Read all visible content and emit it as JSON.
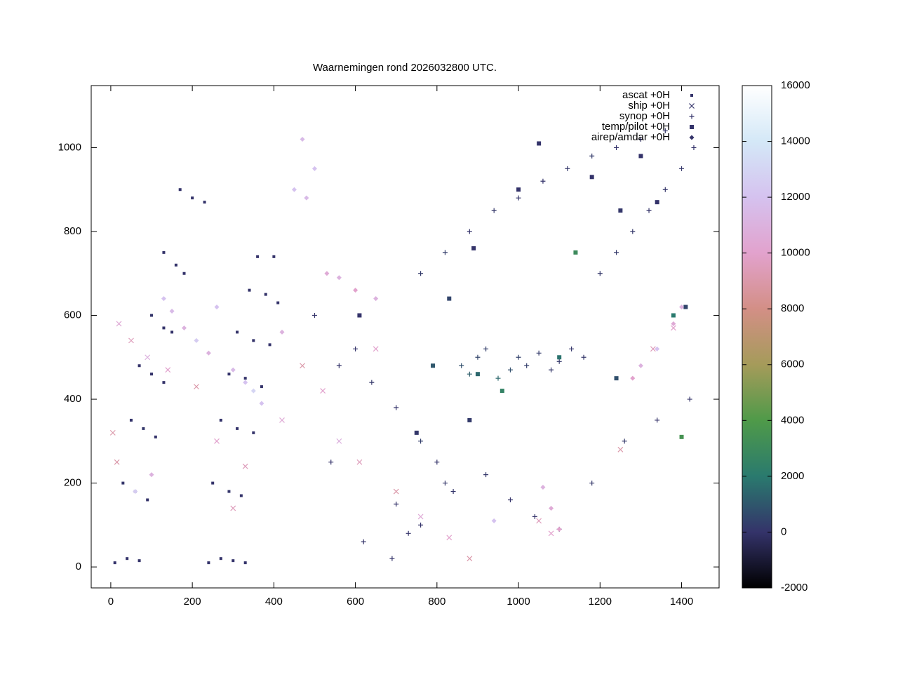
{
  "chart_data": {
    "type": "scatter",
    "title": "Waarnemingen rond 2026032800 UTC.",
    "xlim": [
      -48,
      1492
    ],
    "ylim": [
      -50,
      1148
    ],
    "xticks": [
      0,
      200,
      400,
      600,
      800,
      1000,
      1200,
      1400
    ],
    "yticks": [
      0,
      200,
      400,
      600,
      800,
      1000
    ],
    "colorbar": {
      "range": [
        -2000,
        16000
      ],
      "ticks": [
        -2000,
        0,
        2000,
        4000,
        6000,
        8000,
        10000,
        12000,
        14000,
        16000
      ],
      "colors": [
        "#000000",
        "#34336a",
        "#2a7a6e",
        "#4f9a49",
        "#a59b5a",
        "#d38f86",
        "#e2a2cd",
        "#d5c2ef",
        "#d4e8f7",
        "#ffffff"
      ]
    },
    "series": [
      {
        "name": "ascat +0H",
        "marker": "dot",
        "x": [
          10,
          40,
          70,
          30,
          60,
          90,
          50,
          80,
          110,
          70,
          100,
          130,
          100,
          130,
          150,
          130,
          160,
          180,
          170,
          200,
          230,
          240,
          270,
          300,
          330,
          250,
          290,
          320,
          270,
          310,
          350,
          290,
          330,
          370,
          310,
          350,
          390,
          340,
          380,
          410,
          360,
          400
        ],
        "y": [
          10,
          20,
          15,
          200,
          180,
          160,
          350,
          330,
          310,
          480,
          460,
          440,
          600,
          570,
          560,
          750,
          720,
          700,
          900,
          880,
          870,
          10,
          20,
          15,
          10,
          200,
          180,
          170,
          350,
          330,
          320,
          460,
          450,
          430,
          560,
          540,
          530,
          660,
          650,
          630,
          740,
          740
        ],
        "z": [
          0,
          0,
          0,
          50,
          0,
          0,
          0,
          100,
          0,
          0,
          0,
          0,
          50,
          0,
          0,
          0,
          0,
          0,
          0,
          0,
          0,
          0,
          0,
          0,
          0,
          0,
          50,
          0,
          0,
          0,
          0,
          0,
          0,
          0,
          0,
          0,
          0,
          0,
          0,
          0,
          0,
          0
        ]
      },
      {
        "name": "ship +0H",
        "marker": "cross",
        "x": [
          5,
          20,
          50,
          90,
          140,
          210,
          260,
          330,
          420,
          470,
          520,
          560,
          610,
          650,
          700,
          760,
          830,
          880,
          1050,
          1080,
          1250,
          1330,
          1380,
          15,
          300
        ],
        "y": [
          320,
          580,
          540,
          500,
          470,
          430,
          300,
          240,
          350,
          480,
          420,
          300,
          250,
          520,
          180,
          120,
          70,
          20,
          110,
          80,
          280,
          520,
          570,
          250,
          140
        ],
        "z": [
          9000,
          10500,
          9500,
          11000,
          10000,
          9000,
          10000,
          9500,
          10500,
          9000,
          10000,
          11000,
          9500,
          10000,
          9000,
          10500,
          10000,
          9000,
          9500,
          10000,
          9000,
          9500,
          10000,
          9000,
          9500
        ]
      },
      {
        "name": "synop +0H",
        "marker": "plus",
        "x": [
          560,
          600,
          640,
          700,
          760,
          800,
          820,
          860,
          880,
          900,
          920,
          950,
          980,
          1000,
          1020,
          1050,
          1080,
          1100,
          1130,
          1160,
          1200,
          1240,
          1280,
          1320,
          1360,
          1400,
          1430,
          760,
          820,
          880,
          940,
          1000,
          1060,
          1120,
          1180,
          1240,
          1300,
          1360,
          700,
          760,
          840,
          920,
          980,
          1040,
          1100,
          1180,
          1260,
          1340,
          1420,
          500,
          540,
          620,
          690,
          730
        ],
        "y": [
          480,
          520,
          440,
          380,
          300,
          250,
          200,
          480,
          460,
          500,
          520,
          450,
          470,
          500,
          480,
          510,
          470,
          490,
          520,
          500,
          700,
          750,
          800,
          850,
          900,
          950,
          1000,
          700,
          750,
          800,
          850,
          880,
          920,
          950,
          980,
          1000,
          1020,
          1040,
          150,
          100,
          180,
          220,
          160,
          120,
          90,
          200,
          300,
          350,
          400,
          600,
          250,
          60,
          20,
          80
        ],
        "z": [
          0,
          0,
          100,
          0,
          300,
          0,
          100,
          800,
          1200,
          500,
          300,
          1500,
          800,
          400,
          300,
          200,
          100,
          150,
          50,
          100,
          100,
          150,
          100,
          0,
          50,
          100,
          0,
          200,
          300,
          0,
          100,
          50,
          0,
          100,
          200,
          0,
          0,
          100,
          0,
          0,
          50,
          100,
          0,
          0,
          0,
          100,
          150,
          0,
          0,
          0,
          0,
          0,
          0,
          0
        ]
      },
      {
        "name": "temp/pilot +0H",
        "marker": "square",
        "x": [
          610,
          830,
          900,
          960,
          1000,
          1050,
          1100,
          1140,
          1180,
          1250,
          1300,
          1340,
          1380,
          1410,
          890,
          880,
          790,
          750,
          1400,
          1240
        ],
        "y": [
          600,
          640,
          460,
          420,
          900,
          1010,
          500,
          750,
          930,
          850,
          980,
          870,
          600,
          620,
          760,
          350,
          480,
          320,
          310,
          450
        ],
        "z": [
          0,
          500,
          1500,
          2500,
          0,
          0,
          1800,
          3000,
          0,
          100,
          0,
          0,
          2000,
          500,
          0,
          200,
          1000,
          100,
          3500,
          800
        ]
      },
      {
        "name": "airep/amdar +0H",
        "marker": "diamond",
        "x": [
          130,
          150,
          180,
          210,
          240,
          260,
          300,
          330,
          350,
          370,
          420,
          450,
          480,
          530,
          560,
          600,
          650,
          1080,
          1060,
          1100,
          1280,
          1300,
          1340,
          1380,
          1400,
          940,
          470,
          500,
          100,
          60
        ],
        "y": [
          640,
          610,
          570,
          540,
          510,
          620,
          470,
          440,
          420,
          390,
          560,
          900,
          880,
          700,
          690,
          660,
          640,
          140,
          190,
          90,
          450,
          480,
          520,
          580,
          620,
          110,
          1020,
          950,
          220,
          180
        ],
        "z": [
          12000,
          11500,
          11000,
          12500,
          11000,
          12000,
          11500,
          12000,
          13000,
          12000,
          11000,
          12000,
          11500,
          10500,
          11000,
          10000,
          11000,
          10500,
          11000,
          10000,
          10000,
          11000,
          12000,
          10500,
          11000,
          12000,
          11500,
          12000,
          11000,
          12500
        ]
      }
    ]
  }
}
